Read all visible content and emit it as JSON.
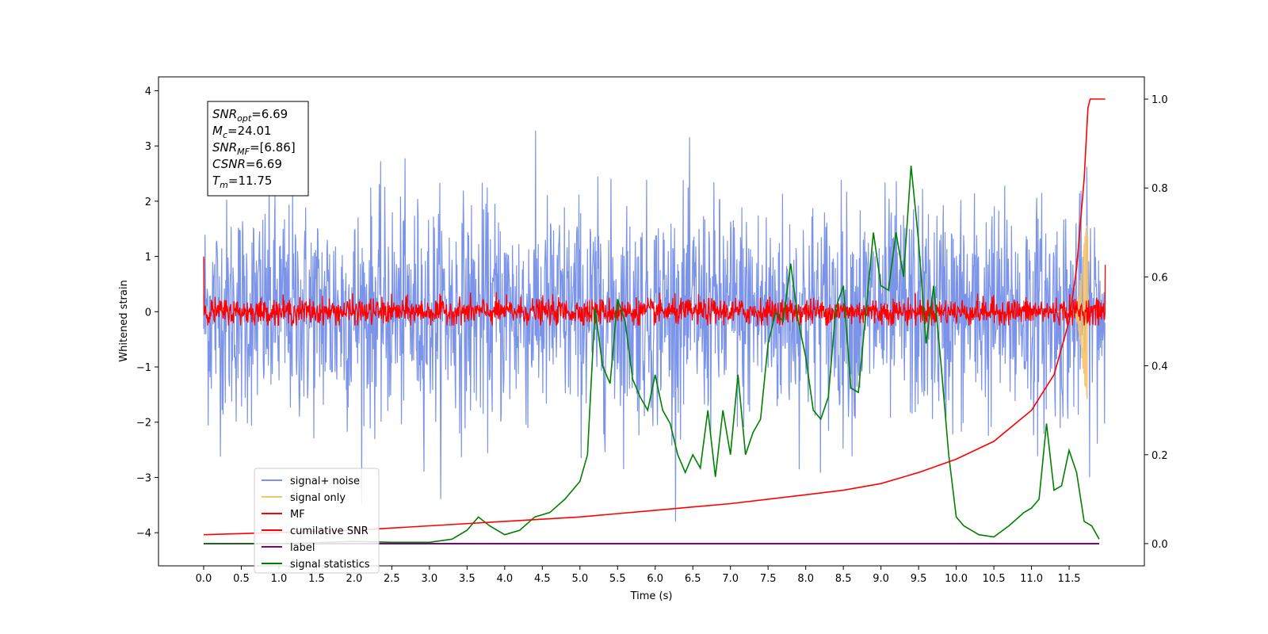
{
  "chart_data": {
    "type": "line",
    "xlabel": "Time (s)",
    "ylabel": "Whitened strain",
    "xlim": [
      -0.6,
      12.5
    ],
    "ylim": [
      -4.6,
      4.25
    ],
    "y2lim": [
      -0.05,
      1.05
    ],
    "x_ticks": [
      "0.0",
      "0.5",
      "1.0",
      "1.5",
      "2.0",
      "2.5",
      "3.0",
      "3.5",
      "4.0",
      "4.5",
      "5.0",
      "5.5",
      "6.0",
      "6.5",
      "7.0",
      "7.5",
      "8.0",
      "8.5",
      "9.0",
      "9.5",
      "10.0",
      "10.5",
      "11.0",
      "11.5"
    ],
    "y_ticks": [
      "4",
      "3",
      "2",
      "1",
      "0",
      "−1",
      "−2",
      "−3",
      "−4"
    ],
    "y2_ticks": [
      "1.0",
      "0.8",
      "0.6",
      "0.4",
      "0.2",
      "0.0"
    ],
    "annotation": {
      "lines": [
        {
          "name": "SNR",
          "sub": "opt",
          "value": "=6.69"
        },
        {
          "name": "M",
          "sub": "c",
          "value": "=24.01"
        },
        {
          "name": "SNR",
          "sub": "MF",
          "value": "=[6.86]"
        },
        {
          "name": "CSNR",
          "sub": "",
          "value": "=6.69"
        },
        {
          "name": "T",
          "sub": "m",
          "value": "=11.75"
        }
      ]
    },
    "merger_time": 11.75,
    "noise_sigma": 1.0,
    "mf_sigma": 0.12,
    "series": [
      {
        "name": "signal+ noise",
        "color": "#7b93e8",
        "axis": "left",
        "kind": "gaussian-noise",
        "x_range": [
          0.0,
          11.98
        ],
        "std": 1.0,
        "approx_range": [
          -3.8,
          3.8
        ]
      },
      {
        "name": "signal only",
        "color": "#f5c46a",
        "axis": "left",
        "kind": "chirp",
        "x_range": [
          11.3,
          11.8
        ],
        "peak_amplitude": 1.6
      },
      {
        "name": "MF",
        "color": "#ff0000",
        "axis": "left",
        "kind": "noise",
        "x_range": [
          0.0,
          11.98
        ],
        "std": 0.12,
        "start_value": 1.0
      },
      {
        "name": "cumilative SNR",
        "color": "#ff0000",
        "axis": "right",
        "x": [
          0.0,
          1.0,
          2.0,
          3.0,
          4.0,
          5.0,
          6.0,
          7.0,
          8.0,
          8.5,
          9.0,
          9.5,
          10.0,
          10.5,
          11.0,
          11.3,
          11.5,
          11.6,
          11.7,
          11.75,
          11.78,
          11.98
        ],
        "y": [
          0.02,
          0.025,
          0.03,
          0.04,
          0.05,
          0.06,
          0.075,
          0.09,
          0.11,
          0.12,
          0.135,
          0.16,
          0.19,
          0.23,
          0.3,
          0.38,
          0.5,
          0.62,
          0.82,
          0.98,
          1.0,
          1.0
        ]
      },
      {
        "name": "label",
        "color": "#800080",
        "axis": "right",
        "x": [
          0.0,
          11.9
        ],
        "y": [
          0.0,
          0.0
        ]
      },
      {
        "name": "signal statistics",
        "color": "#008000",
        "axis": "right",
        "x": [
          0.0,
          0.5,
          1.0,
          1.5,
          2.0,
          2.5,
          3.0,
          3.3,
          3.5,
          3.65,
          3.8,
          4.0,
          4.2,
          4.4,
          4.6,
          4.8,
          5.0,
          5.1,
          5.2,
          5.3,
          5.4,
          5.5,
          5.6,
          5.7,
          5.8,
          5.9,
          6.0,
          6.1,
          6.2,
          6.3,
          6.4,
          6.5,
          6.6,
          6.7,
          6.8,
          6.9,
          7.0,
          7.1,
          7.2,
          7.3,
          7.4,
          7.5,
          7.6,
          7.7,
          7.8,
          7.9,
          8.0,
          8.1,
          8.2,
          8.3,
          8.4,
          8.5,
          8.6,
          8.7,
          8.8,
          8.9,
          9.0,
          9.1,
          9.2,
          9.3,
          9.4,
          9.5,
          9.6,
          9.7,
          9.8,
          9.9,
          10.0,
          10.1,
          10.2,
          10.3,
          10.5,
          10.7,
          10.9,
          11.0,
          11.1,
          11.2,
          11.3,
          11.4,
          11.5,
          11.6,
          11.7,
          11.8,
          11.9
        ],
        "y": [
          0.0,
          0.0,
          0.0,
          0.002,
          0.005,
          0.003,
          0.003,
          0.01,
          0.03,
          0.06,
          0.04,
          0.02,
          0.03,
          0.06,
          0.07,
          0.1,
          0.14,
          0.2,
          0.53,
          0.4,
          0.36,
          0.55,
          0.5,
          0.37,
          0.33,
          0.3,
          0.38,
          0.3,
          0.27,
          0.2,
          0.16,
          0.2,
          0.17,
          0.3,
          0.15,
          0.3,
          0.2,
          0.38,
          0.2,
          0.25,
          0.28,
          0.45,
          0.52,
          0.5,
          0.63,
          0.5,
          0.42,
          0.3,
          0.28,
          0.33,
          0.53,
          0.58,
          0.35,
          0.34,
          0.52,
          0.7,
          0.58,
          0.57,
          0.7,
          0.6,
          0.85,
          0.68,
          0.45,
          0.58,
          0.4,
          0.2,
          0.06,
          0.04,
          0.03,
          0.02,
          0.015,
          0.04,
          0.07,
          0.08,
          0.1,
          0.27,
          0.12,
          0.13,
          0.21,
          0.16,
          0.05,
          0.04,
          0.01
        ]
      }
    ],
    "legend_position": "lower-left",
    "grid": false
  }
}
